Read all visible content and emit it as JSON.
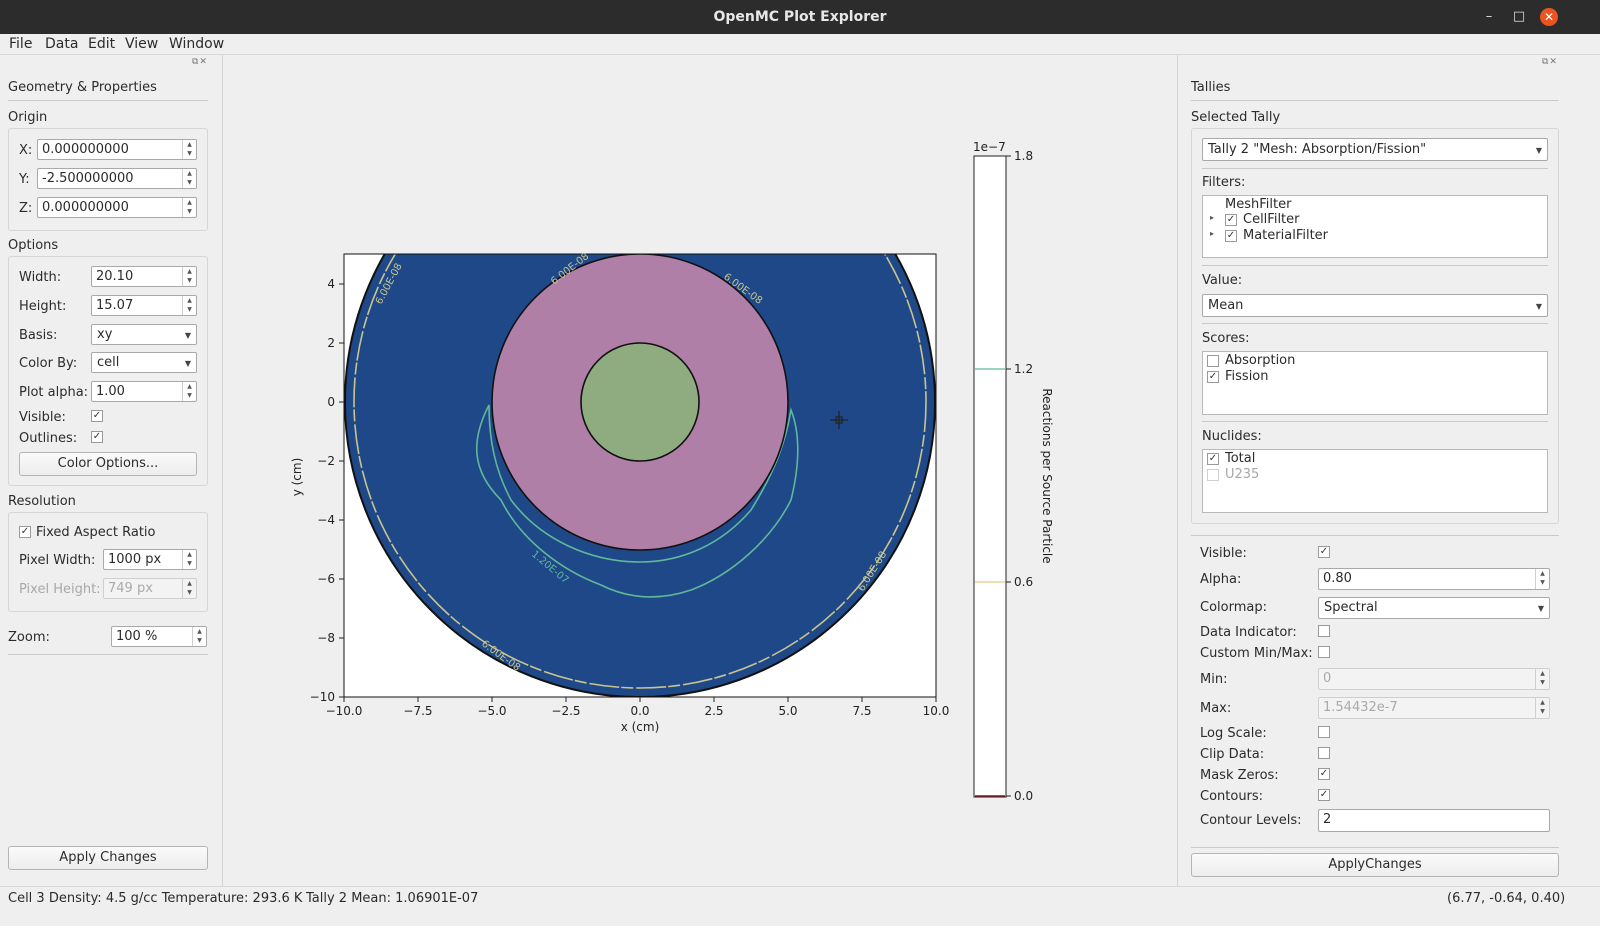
{
  "window": {
    "title": "OpenMC Plot Explorer"
  },
  "menu": [
    "File",
    "Data",
    "Edit",
    "View",
    "Window"
  ],
  "left": {
    "panel_title": "Geometry & Properties",
    "origin": {
      "title": "Origin",
      "x_label": "X:",
      "x": "0.000000000",
      "y_label": "Y:",
      "y": "-2.500000000",
      "z_label": "Z:",
      "z": "0.000000000"
    },
    "options": {
      "title": "Options",
      "width_label": "Width:",
      "width": "20.10",
      "height_label": "Height:",
      "height": "15.07",
      "basis_label": "Basis:",
      "basis": "xy",
      "colorby_label": "Color By:",
      "colorby": "cell",
      "alpha_label": "Plot alpha:",
      "alpha": "1.00",
      "visible_label": "Visible:",
      "outlines_label": "Outlines:",
      "color_options": "Color Options..."
    },
    "resolution": {
      "title": "Resolution",
      "fixed_aspect": "Fixed Aspect Ratio",
      "pixel_width_label": "Pixel Width:",
      "pixel_width": "1000 px",
      "pixel_height_label": "Pixel Height:",
      "pixel_height": "749 px"
    },
    "zoom_label": "Zoom:",
    "zoom": "100 %",
    "apply": "Apply Changes"
  },
  "right": {
    "panel_title": "Tallies",
    "selected_tally_label": "Selected Tally",
    "selected_tally": "Tally 2 \"Mesh: Absorption/Fission\"",
    "filters_label": "Filters:",
    "filters": [
      "MeshFilter",
      "CellFilter",
      "MaterialFilter"
    ],
    "value_label": "Value:",
    "value": "Mean",
    "scores_label": "Scores:",
    "scores": [
      "Absorption",
      "Fission"
    ],
    "nuclides_label": "Nuclides:",
    "nuclides": [
      "Total",
      "U235"
    ],
    "visible_label": "Visible:",
    "alpha_label": "Alpha:",
    "alpha": "0.80",
    "colormap_label": "Colormap:",
    "colormap": "Spectral",
    "data_indicator_label": "Data Indicator:",
    "custom_minmax_label": "Custom Min/Max:",
    "min_label": "Min:",
    "min": "0",
    "max_label": "Max:",
    "max": "1.54432e-7",
    "log_scale_label": "Log Scale:",
    "clip_data_label": "Clip Data:",
    "mask_zeros_label": "Mask Zeros:",
    "contours_label": "Contours:",
    "contour_levels_label": "Contour Levels:",
    "contour_levels": "2",
    "apply": "ApplyChanges"
  },
  "status": {
    "cell": "Cell 3  Density: 4.5 g/cc Temperature: 293.6 K",
    "tally": "Tally 2 Mean: 1.06901E-07",
    "coords": "(6.77, -0.64, 0.40)"
  },
  "colors": {
    "fill": "#1f4888",
    "cell_pink": "#b07fa8",
    "cell_green": "#8fac80",
    "contour_low": "#c8c48c",
    "contour_high": "#5fb89a"
  },
  "chart_data": {
    "type": "heatmap",
    "xlabel": "x (cm)",
    "ylabel": "y (cm)",
    "xlim": [
      -10.0,
      10.0
    ],
    "ylim": [
      -10.0,
      5.0
    ],
    "x_ticks": [
      "−10.0",
      "−7.5",
      "−5.0",
      "−2.5",
      "0.0",
      "2.5",
      "5.0",
      "7.5",
      "10.0"
    ],
    "y_ticks": [
      "4",
      "2",
      "0",
      "−2",
      "−4",
      "−6",
      "−8",
      "−10"
    ],
    "contour_labels": [
      "6.00E-08",
      "6.00E-08",
      "6.00E-08",
      "6.00E-08",
      "6.00E-08",
      "1.20E-07"
    ],
    "colorbar": {
      "label": "Reactions per Source Particle",
      "multiplier": "1e−7",
      "ticks": [
        "1.8",
        "1.2",
        "0.6",
        "0.0"
      ],
      "range": [
        0.0,
        1.8
      ]
    }
  }
}
